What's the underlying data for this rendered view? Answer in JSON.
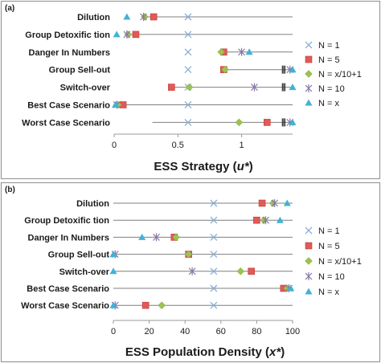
{
  "colors": {
    "n1": "#8aaed6",
    "n5": "#e05a57",
    "nx10": "#9bc44f",
    "n10": "#8a77aa",
    "nx": "#3fb3d6",
    "frame": "#9a9a9a",
    "row_line": "#7f7f7f"
  },
  "legend": [
    {
      "key": "n1",
      "label": "N = 1",
      "marker": "x-icon"
    },
    {
      "key": "n5",
      "label": "N = 5",
      "marker": "square-icon"
    },
    {
      "key": "nx10",
      "label": "N = x/10+1",
      "marker": "diamond-icon"
    },
    {
      "key": "n10",
      "label": "N = 10",
      "marker": "asterisk-icon"
    },
    {
      "key": "nx",
      "label": "N = x",
      "marker": "triangle-icon"
    }
  ],
  "chart_data": [
    {
      "panel_label": "(a)",
      "type": "scatter",
      "xlabel_main": "ESS Strategy (",
      "xlabel_var": "u*",
      "xlabel_end": ")",
      "xlim": [
        0,
        1.4
      ],
      "xticks": [
        0,
        0.5,
        1
      ],
      "xtick_labels": [
        "0",
        "0.5",
        "1"
      ],
      "categories": [
        "Dilution",
        "Group Detoxific  tion",
        "Danger In Numbers",
        "Group Sell-out",
        "Switch-over",
        "Best Case Scenario",
        "Worst Case Scenario"
      ],
      "row_line_start": [
        0.25,
        0.1,
        0.88,
        0.88,
        0.45,
        0.05,
        0.3
      ],
      "series": [
        {
          "key": "n1",
          "name": "N = 1",
          "values": [
            0.58,
            0.58,
            0.58,
            0.58,
            0.58,
            0.58,
            0.58
          ]
        },
        {
          "key": "n5",
          "name": "N = 5",
          "values": [
            0.31,
            0.17,
            0.86,
            0.86,
            0.45,
            0.07,
            1.2
          ]
        },
        {
          "key": "nx10",
          "name": "N = x/10+1",
          "values": [
            0.24,
            0.11,
            0.84,
            0.87,
            0.59,
            0.03,
            0.98
          ]
        },
        {
          "key": "n10",
          "name": "N = 10",
          "values": [
            0.23,
            0.1,
            1.0,
            1.38,
            1.1,
            0.02,
            1.38
          ]
        },
        {
          "key": "nx",
          "name": "N = x",
          "values": [
            0.1,
            0.02,
            1.06,
            1.4,
            1.4,
            0.01,
            1.4
          ]
        }
      ],
      "multi_marks": [
        {
          "row": 3,
          "x": [
            1.32,
            1.33,
            1.34
          ]
        },
        {
          "row": 4,
          "x": [
            1.32,
            1.33,
            1.34
          ]
        },
        {
          "row": 6,
          "x": [
            1.32,
            1.33,
            1.34
          ]
        }
      ]
    },
    {
      "panel_label": "(b)",
      "type": "scatter",
      "xlabel_main": "ESS Population Density (",
      "xlabel_var": "x*",
      "xlabel_end": ")",
      "xlim": [
        0,
        100
      ],
      "xticks": [
        0,
        20,
        40,
        60,
        80,
        100
      ],
      "xtick_labels": [
        "0",
        "20",
        "40",
        "60",
        "80",
        "100"
      ],
      "categories": [
        "Dilution",
        "Group Detoxific  tion",
        "Danger In Numbers",
        "Group Sell-out",
        "Switch-over",
        "Best Case Scenario",
        "Worst Case Scenario"
      ],
      "row_line_start": [
        0,
        0,
        0,
        0,
        0,
        0,
        0
      ],
      "series": [
        {
          "key": "n1",
          "name": "N = 1",
          "values": [
            56,
            56,
            56,
            56,
            56,
            56,
            56
          ]
        },
        {
          "key": "n5",
          "name": "N = 5",
          "values": [
            83,
            80,
            34,
            42,
            77,
            95,
            18
          ]
        },
        {
          "key": "nx10",
          "name": "N = x/10+1",
          "values": [
            89,
            84,
            35,
            42,
            71,
            97,
            27
          ]
        },
        {
          "key": "n10",
          "name": "N = 10",
          "values": [
            90,
            85,
            24,
            1,
            44,
            98,
            1
          ]
        },
        {
          "key": "nx",
          "name": "N = x",
          "values": [
            97,
            93,
            16,
            0,
            0,
            99,
            0
          ]
        }
      ],
      "multi_marks": []
    }
  ]
}
